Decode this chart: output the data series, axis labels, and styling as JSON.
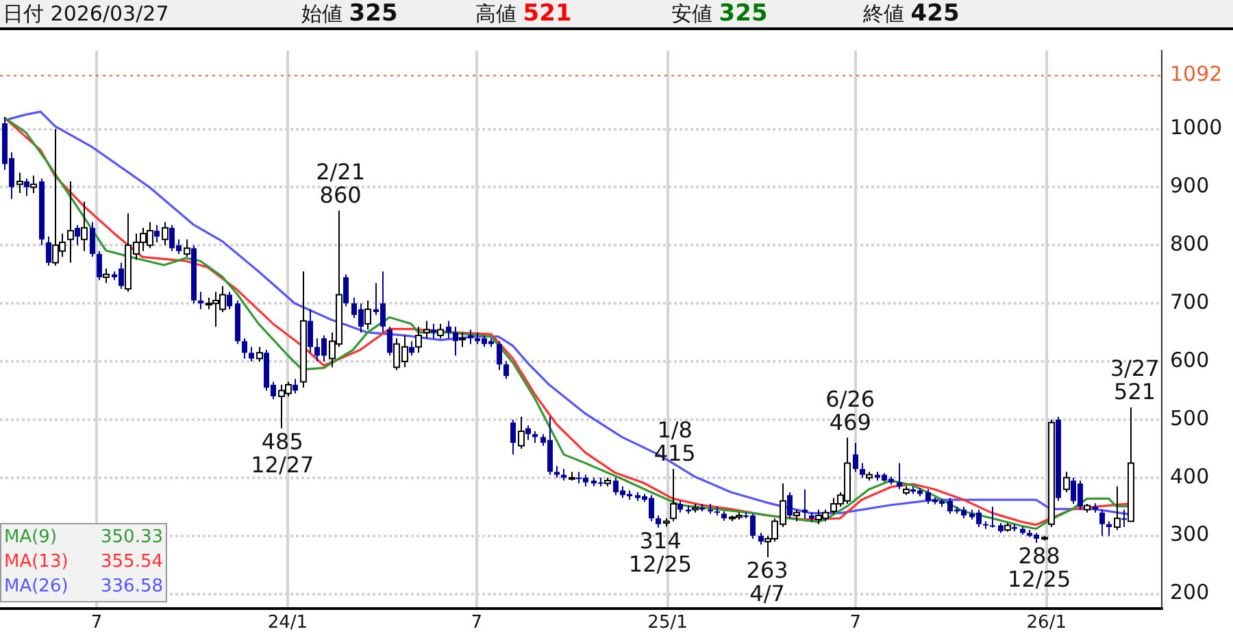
{
  "chart_data": {
    "type": "candlestick",
    "x": [
      "2023-04-03",
      "2023-04-10",
      "2023-04-17",
      "2023-04-24",
      "2023-05-01",
      "2023-05-08",
      "2023-05-15",
      "2023-05-22",
      "2023-05-29",
      "2023-06-05",
      "2023-06-12",
      "2023-06-19",
      "2023-06-26",
      "2023-07-03",
      "2023-07-10",
      "2023-07-17",
      "2023-07-24",
      "2023-07-31",
      "2023-08-07",
      "2023-08-14",
      "2023-08-21",
      "2023-08-28",
      "2023-09-04",
      "2023-09-11",
      "2023-09-18",
      "2023-09-25",
      "2023-10-02",
      "2023-10-09",
      "2023-10-16",
      "2023-10-23",
      "2023-10-30",
      "2023-11-06",
      "2023-11-13",
      "2023-11-20",
      "2023-11-27",
      "2023-12-04",
      "2023-12-11",
      "2023-12-18",
      "2023-12-25",
      "2024-01-01",
      "2024-01-08",
      "2024-01-15",
      "2024-01-22",
      "2024-01-29",
      "2024-02-05",
      "2024-02-12",
      "2024-02-19",
      "2024-02-26",
      "2024-03-04",
      "2024-03-11",
      "2024-03-18",
      "2024-03-25",
      "2024-04-01",
      "2024-04-08",
      "2024-04-15",
      "2024-04-22",
      "2024-04-29",
      "2024-05-06",
      "2024-05-13",
      "2024-05-20",
      "2024-05-27",
      "2024-06-03",
      "2024-06-10",
      "2024-06-17",
      "2024-06-24",
      "2024-07-01",
      "2024-07-08",
      "2024-07-15",
      "2024-07-22",
      "2024-07-29",
      "2024-08-05",
      "2024-08-12",
      "2024-08-19",
      "2024-08-26",
      "2024-09-02",
      "2024-09-09",
      "2024-09-16",
      "2024-09-23",
      "2024-09-30",
      "2024-10-07",
      "2024-10-14",
      "2024-10-21",
      "2024-10-28",
      "2024-11-04",
      "2024-11-11",
      "2024-11-18",
      "2024-11-25",
      "2024-12-02",
      "2024-12-09",
      "2024-12-16",
      "2024-12-23",
      "2024-12-30",
      "2025-01-06",
      "2025-01-13",
      "2025-01-20",
      "2025-01-27",
      "2025-02-03",
      "2025-02-10",
      "2025-02-17",
      "2025-02-24",
      "2025-03-03",
      "2025-03-10",
      "2025-03-17",
      "2025-03-24",
      "2025-03-31",
      "2025-04-07",
      "2025-04-14",
      "2025-04-21",
      "2025-04-28",
      "2025-05-05",
      "2025-05-12",
      "2025-05-19",
      "2025-05-26",
      "2025-06-02",
      "2025-06-09",
      "2025-06-16",
      "2025-06-23",
      "2025-06-30",
      "2025-07-07",
      "2025-07-14",
      "2025-07-21",
      "2025-07-28",
      "2025-08-04",
      "2025-08-11",
      "2025-08-18",
      "2025-08-25",
      "2025-09-01",
      "2025-09-08",
      "2025-09-15",
      "2025-09-22",
      "2025-09-29",
      "2025-10-06",
      "2025-10-13",
      "2025-10-20",
      "2025-10-27",
      "2025-11-03",
      "2025-11-10",
      "2025-11-17",
      "2025-11-24",
      "2025-12-01",
      "2025-12-08",
      "2025-12-15",
      "2025-12-22",
      "2025-12-29",
      "2026-01-05",
      "2026-01-12",
      "2026-01-19",
      "2026-01-26",
      "2026-02-02",
      "2026-02-09",
      "2026-02-16",
      "2026-02-23",
      "2026-03-02",
      "2026-03-09",
      "2026-03-16",
      "2026-03-23"
    ],
    "ohlc": [
      [
        1010,
        1020,
        930,
        940
      ],
      [
        950,
        960,
        880,
        900
      ],
      [
        905,
        925,
        890,
        910
      ],
      [
        910,
        915,
        885,
        900
      ],
      [
        900,
        920,
        890,
        905
      ],
      [
        910,
        915,
        800,
        810
      ],
      [
        805,
        815,
        765,
        770
      ],
      [
        770,
        1000,
        765,
        800
      ],
      [
        790,
        820,
        780,
        805
      ],
      [
        810,
        910,
        770,
        825
      ],
      [
        830,
        835,
        800,
        815
      ],
      [
        810,
        875,
        790,
        830
      ],
      [
        830,
        840,
        780,
        785
      ],
      [
        785,
        790,
        740,
        745
      ],
      [
        745,
        760,
        735,
        750
      ],
      [
        750,
        755,
        740,
        745
      ],
      [
        760,
        770,
        725,
        730
      ],
      [
        725,
        855,
        720,
        800
      ],
      [
        785,
        820,
        775,
        805
      ],
      [
        805,
        830,
        790,
        820
      ],
      [
        800,
        840,
        795,
        825
      ],
      [
        825,
        835,
        805,
        815
      ],
      [
        810,
        840,
        800,
        830
      ],
      [
        830,
        835,
        790,
        795
      ],
      [
        800,
        810,
        785,
        790
      ],
      [
        785,
        810,
        780,
        795
      ],
      [
        795,
        800,
        700,
        705
      ],
      [
        705,
        720,
        690,
        700
      ],
      [
        700,
        710,
        690,
        700
      ],
      [
        700,
        720,
        660,
        705
      ],
      [
        690,
        730,
        685,
        715
      ],
      [
        715,
        720,
        690,
        695
      ],
      [
        700,
        705,
        630,
        635
      ],
      [
        635,
        640,
        605,
        615
      ],
      [
        615,
        625,
        600,
        605
      ],
      [
        605,
        625,
        600,
        615
      ],
      [
        615,
        620,
        550,
        555
      ],
      [
        560,
        565,
        535,
        540
      ],
      [
        540,
        560,
        485,
        550
      ],
      [
        545,
        565,
        540,
        560
      ],
      [
        560,
        570,
        545,
        550
      ],
      [
        565,
        755,
        555,
        670
      ],
      [
        670,
        690,
        615,
        625
      ],
      [
        625,
        640,
        600,
        610
      ],
      [
        640,
        645,
        600,
        610
      ],
      [
        605,
        650,
        590,
        635
      ],
      [
        630,
        860,
        625,
        715
      ],
      [
        745,
        750,
        695,
        700
      ],
      [
        700,
        710,
        675,
        680
      ],
      [
        690,
        700,
        650,
        660
      ],
      [
        665,
        705,
        655,
        690
      ],
      [
        690,
        735,
        680,
        685
      ],
      [
        700,
        755,
        650,
        660
      ],
      [
        655,
        660,
        610,
        615
      ],
      [
        590,
        640,
        585,
        630
      ],
      [
        600,
        645,
        590,
        625
      ],
      [
        625,
        635,
        610,
        615
      ],
      [
        625,
        660,
        615,
        645
      ],
      [
        650,
        670,
        640,
        655
      ],
      [
        655,
        665,
        640,
        650
      ],
      [
        645,
        665,
        640,
        655
      ],
      [
        660,
        670,
        640,
        650
      ],
      [
        650,
        660,
        610,
        635
      ],
      [
        640,
        650,
        625,
        640
      ],
      [
        645,
        655,
        630,
        640
      ],
      [
        640,
        650,
        630,
        635
      ],
      [
        640,
        645,
        625,
        630
      ],
      [
        635,
        640,
        625,
        630
      ],
      [
        630,
        635,
        585,
        595
      ],
      [
        595,
        600,
        570,
        575
      ],
      [
        495,
        500,
        440,
        460
      ],
      [
        455,
        505,
        450,
        480
      ],
      [
        485,
        490,
        465,
        475
      ],
      [
        475,
        480,
        460,
        470
      ],
      [
        470,
        475,
        455,
        460
      ],
      [
        465,
        505,
        405,
        410
      ],
      [
        410,
        420,
        400,
        405
      ],
      [
        405,
        415,
        395,
        400
      ],
      [
        400,
        410,
        395,
        400
      ],
      [
        400,
        410,
        390,
        398
      ],
      [
        400,
        405,
        385,
        392
      ],
      [
        395,
        400,
        385,
        390
      ],
      [
        392,
        400,
        385,
        390
      ],
      [
        390,
        400,
        385,
        395
      ],
      [
        395,
        400,
        370,
        375
      ],
      [
        378,
        385,
        365,
        370
      ],
      [
        372,
        378,
        362,
        368
      ],
      [
        370,
        375,
        360,
        365
      ],
      [
        368,
        372,
        358,
        362
      ],
      [
        365,
        370,
        325,
        330
      ],
      [
        330,
        335,
        314,
        320
      ],
      [
        322,
        330,
        316,
        325
      ],
      [
        330,
        415,
        325,
        355
      ],
      [
        355,
        360,
        340,
        345
      ],
      [
        345,
        352,
        338,
        342
      ],
      [
        345,
        355,
        340,
        348
      ],
      [
        348,
        355,
        342,
        345
      ],
      [
        345,
        355,
        338,
        342
      ],
      [
        342,
        350,
        335,
        340
      ],
      [
        338,
        342,
        326,
        330
      ],
      [
        330,
        335,
        325,
        332
      ],
      [
        332,
        340,
        328,
        335
      ],
      [
        335,
        340,
        330,
        333
      ],
      [
        335,
        338,
        295,
        300
      ],
      [
        300,
        305,
        285,
        290
      ],
      [
        290,
        300,
        263,
        295
      ],
      [
        295,
        330,
        290,
        325
      ],
      [
        320,
        390,
        315,
        360
      ],
      [
        370,
        375,
        330,
        335
      ],
      [
        335,
        345,
        325,
        340
      ],
      [
        345,
        380,
        330,
        340
      ],
      [
        335,
        340,
        325,
        330
      ],
      [
        328,
        345,
        320,
        335
      ],
      [
        330,
        345,
        325,
        340
      ],
      [
        342,
        365,
        338,
        355
      ],
      [
        355,
        375,
        350,
        370
      ],
      [
        360,
        469,
        355,
        425
      ],
      [
        440,
        460,
        410,
        415
      ],
      [
        415,
        425,
        400,
        405
      ],
      [
        400,
        410,
        395,
        405
      ],
      [
        405,
        410,
        395,
        400
      ],
      [
        405,
        408,
        393,
        395
      ],
      [
        398,
        402,
        388,
        392
      ],
      [
        392,
        425,
        380,
        385
      ],
      [
        374,
        385,
        370,
        380
      ],
      [
        380,
        385,
        372,
        376
      ],
      [
        378,
        382,
        368,
        372
      ],
      [
        375,
        380,
        355,
        360
      ],
      [
        362,
        366,
        354,
        358
      ],
      [
        360,
        364,
        350,
        355
      ],
      [
        360,
        365,
        338,
        342
      ],
      [
        345,
        350,
        338,
        342
      ],
      [
        345,
        350,
        330,
        335
      ],
      [
        338,
        345,
        328,
        332
      ],
      [
        340,
        345,
        315,
        320
      ],
      [
        320,
        325,
        312,
        318
      ],
      [
        318,
        350,
        314,
        316
      ],
      [
        318,
        322,
        305,
        308
      ],
      [
        310,
        322,
        307,
        318
      ],
      [
        315,
        320,
        308,
        312
      ],
      [
        312,
        316,
        302,
        305
      ],
      [
        305,
        310,
        298,
        300
      ],
      [
        302,
        305,
        288,
        295
      ],
      [
        295,
        300,
        292,
        297
      ],
      [
        320,
        500,
        315,
        495
      ],
      [
        500,
        505,
        360,
        365
      ],
      [
        380,
        410,
        375,
        400
      ],
      [
        395,
        400,
        355,
        360
      ],
      [
        390,
        395,
        345,
        350
      ],
      [
        345,
        355,
        340,
        352
      ],
      [
        350,
        356,
        340,
        345
      ],
      [
        340,
        345,
        300,
        320
      ],
      [
        320,
        325,
        300,
        315
      ],
      [
        315,
        385,
        310,
        330
      ],
      [
        330,
        345,
        315,
        328
      ],
      [
        325,
        521,
        325,
        425
      ]
    ],
    "series": [
      {
        "name": "MA(9)",
        "type": "line",
        "color": "#339933",
        "x": [
          "2023-04-03",
          "2023-04-24",
          "2023-05-15",
          "2023-06-12",
          "2023-07-10",
          "2023-08-07",
          "2023-09-04",
          "2023-09-25",
          "2023-10-09",
          "2023-10-30",
          "2023-11-13",
          "2023-12-04",
          "2024-01-01",
          "2024-01-15",
          "2024-02-05",
          "2024-03-04",
          "2024-03-18",
          "2024-04-08",
          "2024-04-29",
          "2024-05-06",
          "2024-06-03",
          "2024-07-15",
          "2024-08-05",
          "2024-08-26",
          "2024-09-23",
          "2024-10-14",
          "2024-11-18",
          "2024-12-16",
          "2025-01-13",
          "2025-02-17",
          "2025-03-24",
          "2025-04-28",
          "2025-05-26",
          "2025-06-02",
          "2025-06-23",
          "2025-07-14",
          "2025-08-04",
          "2025-08-25",
          "2025-09-15",
          "2025-10-13",
          "2025-11-10",
          "2025-12-08",
          "2025-12-22",
          "2026-01-05",
          "2026-01-26",
          "2026-02-09",
          "2026-03-02",
          "2026-03-09",
          "2026-03-23"
        ],
        "values": [
          1020,
          994,
          942,
          867,
          791,
          778,
          766,
          778,
          773,
          746,
          717,
          665,
          611,
          586,
          589,
          620,
          650,
          676,
          665,
          650,
          650,
          643,
          598,
          537,
          440,
          425,
          398,
          375,
          353,
          346,
          339,
          330,
          324,
          328,
          351,
          380,
          395,
          387,
          369,
          342,
          330,
          317,
          312,
          328,
          346,
          364,
          364,
          351,
          350.33
        ]
      },
      {
        "name": "MA(13)",
        "type": "line",
        "color": "#ff3333",
        "x": [
          "2023-04-03",
          "2023-05-08",
          "2023-05-22",
          "2023-06-19",
          "2023-07-17",
          "2023-08-14",
          "2023-09-25",
          "2023-10-16",
          "2023-11-13",
          "2023-12-18",
          "2024-01-15",
          "2024-02-05",
          "2024-03-11",
          "2024-04-08",
          "2024-04-29",
          "2024-06-10",
          "2024-07-15",
          "2024-08-05",
          "2024-08-26",
          "2024-09-16",
          "2024-10-14",
          "2024-11-11",
          "2024-12-09",
          "2025-01-06",
          "2025-02-03",
          "2025-03-03",
          "2025-04-07",
          "2025-05-12",
          "2025-06-16",
          "2025-07-07",
          "2025-08-04",
          "2025-08-25",
          "2025-09-15",
          "2025-10-13",
          "2025-11-10",
          "2025-12-08",
          "2025-12-22",
          "2026-01-05",
          "2026-01-26",
          "2026-02-23",
          "2026-03-23"
        ],
        "values": [
          1020,
          964,
          919,
          867,
          822,
          780,
          773,
          762,
          724,
          665,
          627,
          593,
          620,
          656,
          656,
          650,
          647,
          605,
          544,
          492,
          443,
          409,
          391,
          364,
          353,
          346,
          335,
          328,
          330,
          362,
          384,
          389,
          380,
          362,
          339,
          324,
          319,
          330,
          346,
          351,
          355.54
        ]
      },
      {
        "name": "MA(26)",
        "type": "line",
        "color": "#5555ff",
        "x": [
          "2023-04-03",
          "2023-04-24",
          "2023-05-08",
          "2023-05-22",
          "2023-06-26",
          "2023-08-21",
          "2023-10-02",
          "2023-10-30",
          "2023-12-04",
          "2024-01-08",
          "2024-02-12",
          "2024-03-18",
          "2024-04-22",
          "2024-05-27",
          "2024-07-01",
          "2024-07-22",
          "2024-08-05",
          "2024-08-19",
          "2024-09-09",
          "2024-10-14",
          "2024-11-18",
          "2024-12-23",
          "2025-01-06",
          "2025-01-27",
          "2025-03-03",
          "2025-04-07",
          "2025-05-19",
          "2025-06-16",
          "2025-08-04",
          "2025-09-15",
          "2025-11-03",
          "2025-12-22",
          "2026-01-05",
          "2026-02-16",
          "2026-03-23"
        ],
        "values": [
          1015,
          1025,
          1030,
          1005,
          970,
          900,
          836,
          807,
          755,
          700,
          672,
          650,
          645,
          637,
          643,
          643,
          627,
          598,
          560,
          510,
          470,
          440,
          425,
          402,
          375,
          357,
          339,
          339,
          353,
          362,
          362,
          362,
          346,
          346,
          336.58
        ]
      }
    ],
    "xlim": [
      "2023-03-30",
      "2026-04-22"
    ],
    "xticks": [
      {
        "value": "2023-07-01",
        "label": "7"
      },
      {
        "value": "2024-01-01",
        "label": "24/1"
      },
      {
        "value": "2024-07-01",
        "label": "7"
      },
      {
        "value": "2025-01-01",
        "label": "25/1"
      },
      {
        "value": "2025-07-01",
        "label": "7"
      },
      {
        "value": "2026-01-01",
        "label": "26/1"
      }
    ],
    "ylim": [
      175,
      1135
    ],
    "yticks": [
      200,
      300,
      400,
      500,
      600,
      700,
      800,
      900,
      1000
    ],
    "ref_lines": [
      {
        "axis": "y",
        "value": 1092,
        "label": "1092",
        "color": "#e8602c",
        "line_style": "dotted"
      }
    ],
    "annotations": [
      "日付 2026/03/27",
      "始値 325",
      "高値 521",
      "安値 325",
      "終値 425",
      {
        "text": "2/21\n860",
        "x": "2024-02-21",
        "y": 860
      },
      {
        "text": "485\n12/27",
        "x": "2023-12-27",
        "y": 485
      },
      {
        "text": "1/8\n415",
        "x": "2025-01-08",
        "y": 415
      },
      {
        "text": "314\n12/25",
        "x": "2024-12-25",
        "y": 314
      },
      {
        "text": "263\n4/7",
        "x": "2025-04-07",
        "y": 263
      },
      {
        "text": "6/26\n469",
        "x": "2025-06-26",
        "y": 469
      },
      {
        "text": "288\n12/25",
        "x": "2025-12-25",
        "y": 288
      },
      {
        "text": "3/27\n521",
        "x": "2026-03-27",
        "y": 521
      },
      "350.33",
      "355.54",
      "336.58"
    ],
    "grid": true,
    "legend": "bottom left"
  }
}
